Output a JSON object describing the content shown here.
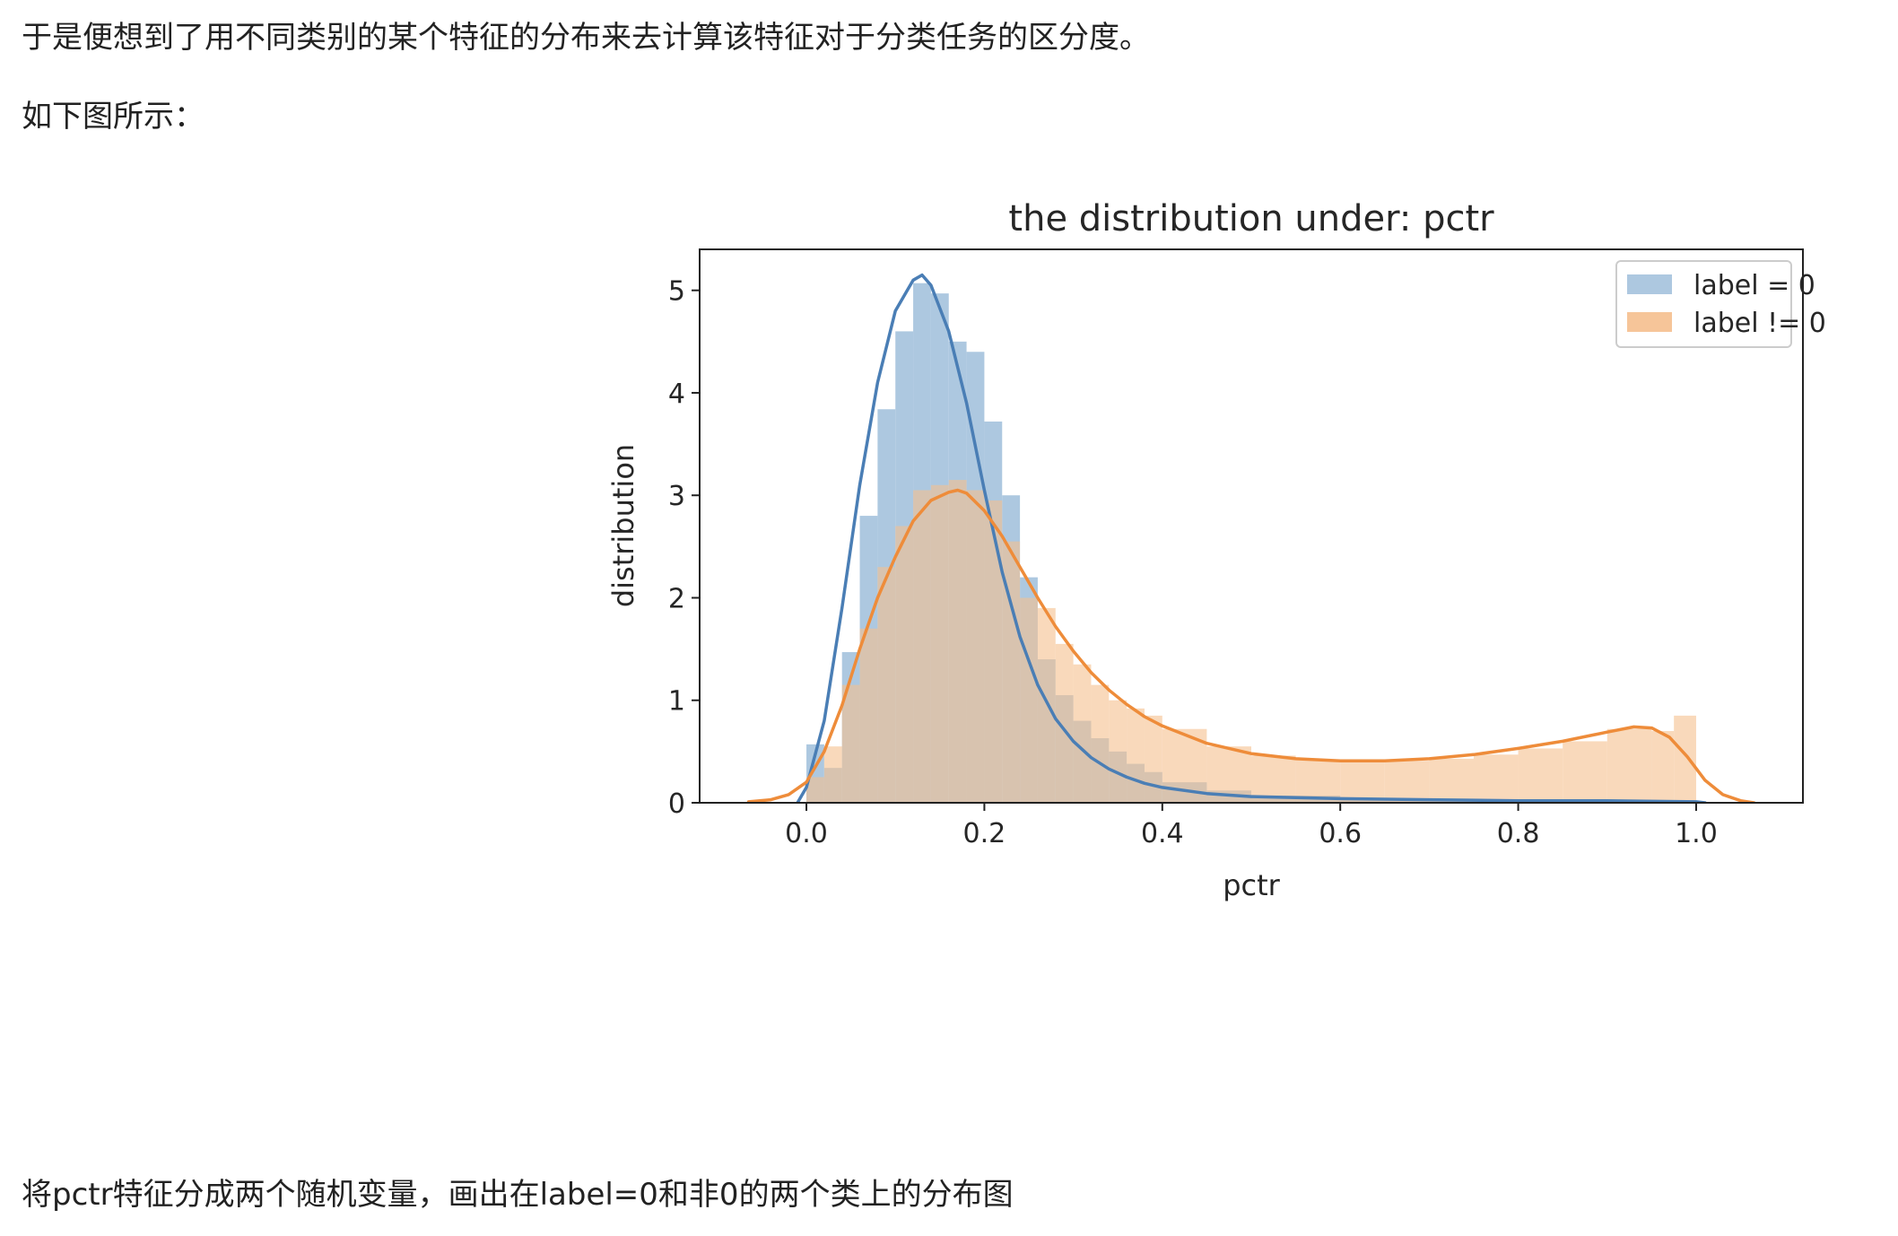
{
  "article": {
    "para1": "于是便想到了用不同类别的某个特征的分布来去计算该特征对于分类任务的区分度。",
    "para2": "如下图所示：",
    "para3": "将pctr特征分成两个随机变量，画出在label=0和非0的两个类上的分布图"
  },
  "chart_data": {
    "type": "area",
    "title": "the distribution under:  pctr",
    "xlabel": "pctr",
    "ylabel": "distribution",
    "xlim": [
      -0.12,
      1.12
    ],
    "ylim": [
      0,
      5.4
    ],
    "xticks": [
      0.0,
      0.2,
      0.4,
      0.6,
      0.8,
      1.0
    ],
    "xtick_labels": [
      "0.0",
      "0.2",
      "0.4",
      "0.6",
      "0.8",
      "1.0"
    ],
    "yticks": [
      0,
      1,
      2,
      3,
      4,
      5
    ],
    "ytick_labels": [
      "0",
      "1",
      "2",
      "3",
      "4",
      "5"
    ],
    "legend_position": "top-right",
    "grid": false,
    "series": [
      {
        "name": "label = 0",
        "color": "#4a7eb5",
        "fill": "#9fbedb",
        "bins": [
          {
            "x0": 0.0,
            "x1": 0.02,
            "y": 0.57
          },
          {
            "x0": 0.02,
            "x1": 0.04,
            "y": 0.34
          },
          {
            "x0": 0.04,
            "x1": 0.06,
            "y": 1.47
          },
          {
            "x0": 0.06,
            "x1": 0.08,
            "y": 2.8
          },
          {
            "x0": 0.08,
            "x1": 0.1,
            "y": 3.84
          },
          {
            "x0": 0.1,
            "x1": 0.12,
            "y": 4.6
          },
          {
            "x0": 0.12,
            "x1": 0.14,
            "y": 5.07
          },
          {
            "x0": 0.14,
            "x1": 0.16,
            "y": 4.97
          },
          {
            "x0": 0.16,
            "x1": 0.18,
            "y": 4.5
          },
          {
            "x0": 0.18,
            "x1": 0.2,
            "y": 4.4
          },
          {
            "x0": 0.2,
            "x1": 0.22,
            "y": 3.72
          },
          {
            "x0": 0.22,
            "x1": 0.24,
            "y": 3.0
          },
          {
            "x0": 0.24,
            "x1": 0.26,
            "y": 2.2
          },
          {
            "x0": 0.26,
            "x1": 0.28,
            "y": 1.4
          },
          {
            "x0": 0.28,
            "x1": 0.3,
            "y": 1.05
          },
          {
            "x0": 0.3,
            "x1": 0.32,
            "y": 0.8
          },
          {
            "x0": 0.32,
            "x1": 0.34,
            "y": 0.63
          },
          {
            "x0": 0.34,
            "x1": 0.36,
            "y": 0.5
          },
          {
            "x0": 0.36,
            "x1": 0.38,
            "y": 0.38
          },
          {
            "x0": 0.38,
            "x1": 0.4,
            "y": 0.3
          },
          {
            "x0": 0.4,
            "x1": 0.45,
            "y": 0.2
          },
          {
            "x0": 0.45,
            "x1": 0.5,
            "y": 0.12
          },
          {
            "x0": 0.5,
            "x1": 0.6,
            "y": 0.07
          },
          {
            "x0": 0.6,
            "x1": 0.7,
            "y": 0.04
          },
          {
            "x0": 0.7,
            "x1": 0.8,
            "y": 0.03
          },
          {
            "x0": 0.8,
            "x1": 0.9,
            "y": 0.02
          },
          {
            "x0": 0.9,
            "x1": 1.0,
            "y": 0.02
          }
        ],
        "kde": {
          "x": [
            -0.01,
            0.0,
            0.02,
            0.04,
            0.06,
            0.08,
            0.1,
            0.12,
            0.13,
            0.14,
            0.16,
            0.18,
            0.2,
            0.22,
            0.24,
            0.26,
            0.28,
            0.3,
            0.32,
            0.34,
            0.36,
            0.38,
            0.4,
            0.45,
            0.5,
            0.55,
            0.6,
            0.7,
            0.8,
            0.9,
            1.0,
            1.01
          ],
          "y": [
            0.0,
            0.15,
            0.8,
            1.9,
            3.1,
            4.1,
            4.8,
            5.1,
            5.15,
            5.05,
            4.6,
            3.9,
            3.05,
            2.25,
            1.62,
            1.15,
            0.82,
            0.6,
            0.44,
            0.33,
            0.25,
            0.19,
            0.15,
            0.09,
            0.06,
            0.05,
            0.04,
            0.03,
            0.02,
            0.02,
            0.01,
            0.0
          ]
        }
      },
      {
        "name": "label != 0",
        "color": "#ee8c3a",
        "fill": "#f5bf8e",
        "bins": [
          {
            "x0": 0.0,
            "x1": 0.02,
            "y": 0.25
          },
          {
            "x0": 0.02,
            "x1": 0.04,
            "y": 0.55
          },
          {
            "x0": 0.04,
            "x1": 0.06,
            "y": 1.15
          },
          {
            "x0": 0.06,
            "x1": 0.08,
            "y": 1.7
          },
          {
            "x0": 0.08,
            "x1": 0.1,
            "y": 2.3
          },
          {
            "x0": 0.1,
            "x1": 0.12,
            "y": 2.7
          },
          {
            "x0": 0.12,
            "x1": 0.14,
            "y": 3.05
          },
          {
            "x0": 0.14,
            "x1": 0.16,
            "y": 3.1
          },
          {
            "x0": 0.16,
            "x1": 0.18,
            "y": 3.15
          },
          {
            "x0": 0.18,
            "x1": 0.2,
            "y": 3.05
          },
          {
            "x0": 0.2,
            "x1": 0.22,
            "y": 2.95
          },
          {
            "x0": 0.22,
            "x1": 0.24,
            "y": 2.55
          },
          {
            "x0": 0.24,
            "x1": 0.26,
            "y": 2.0
          },
          {
            "x0": 0.26,
            "x1": 0.28,
            "y": 1.9
          },
          {
            "x0": 0.28,
            "x1": 0.3,
            "y": 1.55
          },
          {
            "x0": 0.3,
            "x1": 0.32,
            "y": 1.35
          },
          {
            "x0": 0.32,
            "x1": 0.34,
            "y": 1.15
          },
          {
            "x0": 0.34,
            "x1": 0.36,
            "y": 1.0
          },
          {
            "x0": 0.36,
            "x1": 0.38,
            "y": 0.92
          },
          {
            "x0": 0.38,
            "x1": 0.4,
            "y": 0.85
          },
          {
            "x0": 0.4,
            "x1": 0.45,
            "y": 0.72
          },
          {
            "x0": 0.45,
            "x1": 0.5,
            "y": 0.55
          },
          {
            "x0": 0.5,
            "x1": 0.55,
            "y": 0.46
          },
          {
            "x0": 0.55,
            "x1": 0.6,
            "y": 0.42
          },
          {
            "x0": 0.6,
            "x1": 0.65,
            "y": 0.41
          },
          {
            "x0": 0.65,
            "x1": 0.7,
            "y": 0.41
          },
          {
            "x0": 0.7,
            "x1": 0.75,
            "y": 0.43
          },
          {
            "x0": 0.75,
            "x1": 0.8,
            "y": 0.47
          },
          {
            "x0": 0.8,
            "x1": 0.85,
            "y": 0.53
          },
          {
            "x0": 0.85,
            "x1": 0.9,
            "y": 0.6
          },
          {
            "x0": 0.9,
            "x1": 0.95,
            "y": 0.72
          },
          {
            "x0": 0.95,
            "x1": 0.975,
            "y": 0.7
          },
          {
            "x0": 0.975,
            "x1": 1.0,
            "y": 0.85
          }
        ],
        "kde": {
          "x": [
            -0.065,
            -0.04,
            -0.02,
            0.0,
            0.02,
            0.04,
            0.06,
            0.08,
            0.1,
            0.12,
            0.14,
            0.16,
            0.17,
            0.18,
            0.2,
            0.22,
            0.24,
            0.26,
            0.28,
            0.3,
            0.32,
            0.34,
            0.36,
            0.38,
            0.4,
            0.45,
            0.5,
            0.55,
            0.6,
            0.65,
            0.7,
            0.75,
            0.8,
            0.85,
            0.9,
            0.93,
            0.95,
            0.97,
            0.99,
            1.01,
            1.03,
            1.05,
            1.065
          ],
          "y": [
            0.01,
            0.03,
            0.08,
            0.2,
            0.5,
            0.95,
            1.5,
            2.0,
            2.4,
            2.75,
            2.95,
            3.03,
            3.05,
            3.02,
            2.85,
            2.6,
            2.3,
            2.0,
            1.72,
            1.48,
            1.27,
            1.1,
            0.96,
            0.84,
            0.75,
            0.58,
            0.48,
            0.43,
            0.41,
            0.41,
            0.43,
            0.47,
            0.53,
            0.6,
            0.69,
            0.74,
            0.73,
            0.64,
            0.45,
            0.22,
            0.08,
            0.02,
            0.0
          ]
        }
      }
    ]
  }
}
